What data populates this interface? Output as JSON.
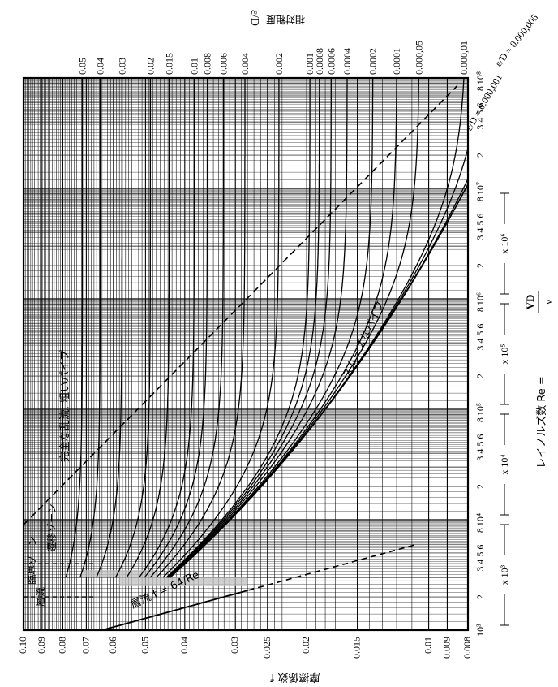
{
  "chart_data": {
    "type": "line",
    "orientation": "rotated-90-clockwise",
    "x_axis": {
      "label": "レイノルズ数 Re =",
      "formula_num": "VD",
      "formula_den": "ν",
      "scale": "log",
      "range": [
        1000,
        100000000
      ],
      "decade_labels": [
        "10³",
        "10⁴",
        "10⁵",
        "10⁶",
        "10⁷",
        "10⁸"
      ],
      "minor_labels": [
        "2",
        "3 4 5 6",
        "8"
      ],
      "multiplier_labels": [
        "x 10³",
        "x 10⁴",
        "x 10⁵",
        "x 10⁶"
      ]
    },
    "y_axis": {
      "label": "摩擦係数 f",
      "scale": "log",
      "range": [
        0.008,
        0.1
      ],
      "ticks": [
        "0.10",
        "0.09",
        "0.08",
        "0.07",
        "0.06",
        "0.05",
        "0.04",
        "0.03",
        "0.025",
        "0.02",
        "0.015",
        "0.01",
        "0.009",
        "0.008"
      ],
      "tick_values": [
        0.1,
        0.09,
        0.08,
        0.07,
        0.06,
        0.05,
        0.04,
        0.03,
        0.025,
        0.02,
        0.015,
        0.01,
        0.009,
        0.008
      ]
    },
    "roughness_axis": {
      "label": "相対粗度",
      "symbol": "ε/D",
      "ticks": [
        "0.05",
        "0.04",
        "0.03",
        "0.02",
        "0.015",
        "0.01",
        "0.008",
        "0.006",
        "0.004",
        "0.002",
        "0.001",
        "0.0008",
        "0.0006",
        "0.0004",
        "0.0002",
        "0.0001",
        "0.000,05",
        "0.000,01"
      ],
      "tick_values": [
        0.05,
        0.04,
        0.03,
        0.02,
        0.015,
        0.01,
        0.008,
        0.006,
        0.004,
        0.002,
        0.001,
        0.0008,
        0.0006,
        0.0004,
        0.0002,
        0.0001,
        5e-05,
        1e-05
      ],
      "extra_labels": [
        "ε/D = 0.000,005",
        "ε/D = 0.000,001"
      ],
      "extra_values": [
        5e-06,
        1e-06
      ]
    },
    "series": [
      {
        "kind": "laminar",
        "label": "層流 f = 64/Re"
      },
      {
        "kind": "smooth",
        "label": "スムーズなパイプ"
      },
      {
        "kind": "full-turbulence-boundary",
        "label": "完全な乱流, 粗いパイプ"
      }
    ],
    "zones": [
      "層流",
      "臨界ゾーン",
      "遷移ゾーン"
    ],
    "grid": true
  }
}
